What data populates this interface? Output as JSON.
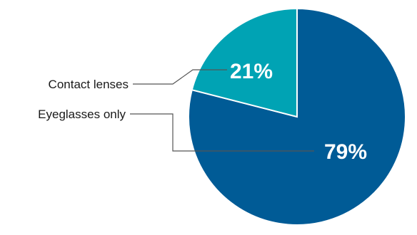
{
  "chart_data": {
    "type": "pie",
    "title": "",
    "start_angle_deg": 0,
    "direction": "counterclockwise",
    "slices": [
      {
        "label": "Eyeglasses only",
        "value": 79,
        "display": "79%",
        "color": "#005b96"
      },
      {
        "label": "Contact lenses",
        "value": 21,
        "display": "21%",
        "color": "#00a3b4"
      }
    ]
  }
}
